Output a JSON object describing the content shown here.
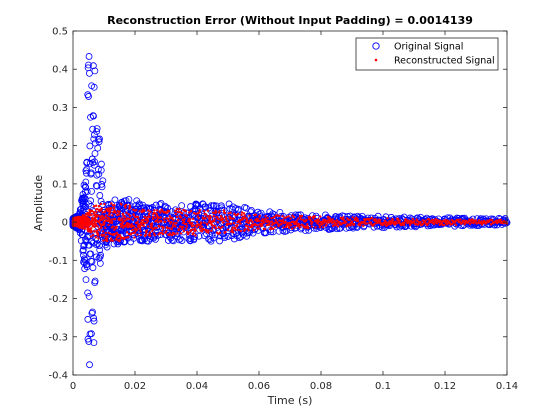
{
  "chart_data": {
    "type": "scatter",
    "title": "Reconstruction Error (Without Input Padding) = 0.0014139",
    "xlabel": "Time (s)",
    "ylabel": "Amplitude",
    "xlim": [
      0,
      0.14
    ],
    "ylim": [
      -0.4,
      0.5
    ],
    "x_ticks": [
      0,
      0.02,
      0.04,
      0.06,
      0.08,
      0.1,
      0.12,
      0.14
    ],
    "x_tick_labels": [
      "0",
      "0.02",
      "0.04",
      "0.06",
      "0.08",
      "0.1",
      "0.12",
      "0.14"
    ],
    "y_ticks": [
      -0.4,
      -0.3,
      -0.2,
      -0.1,
      0,
      0.1,
      0.2,
      0.3,
      0.4,
      0.5
    ],
    "y_tick_labels": [
      "-0.4",
      "-0.3",
      "-0.2",
      "-0.1",
      "0",
      "0.1",
      "0.2",
      "0.3",
      "0.4",
      "0.5"
    ],
    "grid": false,
    "legend_position": "top-right",
    "series": [
      {
        "name": "Original Signal",
        "marker": "circle-open",
        "color": "#0000ff",
        "envelope": {
          "t": [
            0,
            0.002,
            0.004,
            0.005,
            0.006,
            0.007,
            0.008,
            0.009,
            0.01,
            0.012,
            0.015,
            0.02,
            0.025,
            0.03,
            0.035,
            0.04,
            0.045,
            0.05,
            0.055,
            0.06,
            0.07,
            0.08,
            0.09,
            0.1,
            0.11,
            0.12,
            0.13,
            0.14
          ],
          "upper": [
            0.01,
            0.02,
            0.12,
            0.46,
            0.46,
            0.43,
            0.3,
            0.18,
            0.09,
            0.06,
            0.06,
            0.06,
            0.05,
            0.05,
            0.05,
            0.05,
            0.05,
            0.05,
            0.04,
            0.03,
            0.025,
            0.02,
            0.018,
            0.015,
            0.013,
            0.012,
            0.01,
            0.01
          ],
          "lower": [
            -0.01,
            -0.02,
            -0.15,
            -0.37,
            -0.38,
            -0.3,
            -0.2,
            -0.12,
            -0.08,
            -0.06,
            -0.06,
            -0.05,
            -0.05,
            -0.05,
            -0.05,
            -0.05,
            -0.05,
            -0.05,
            -0.04,
            -0.03,
            -0.025,
            -0.02,
            -0.018,
            -0.015,
            -0.013,
            -0.012,
            -0.01,
            -0.01
          ]
        }
      },
      {
        "name": "Reconstructed Signal",
        "marker": "dot",
        "color": "#ff0000",
        "envelope": {
          "t": [
            0,
            0.004,
            0.006,
            0.01,
            0.015,
            0.02,
            0.03,
            0.04,
            0.05,
            0.06,
            0.08,
            0.1,
            0.12,
            0.14
          ],
          "upper": [
            0.01,
            0.02,
            0.04,
            0.05,
            0.05,
            0.04,
            0.035,
            0.035,
            0.03,
            0.02,
            0.015,
            0.01,
            0.008,
            0.006
          ],
          "lower": [
            -0.01,
            -0.02,
            -0.04,
            -0.05,
            -0.05,
            -0.04,
            -0.035,
            -0.035,
            -0.03,
            -0.02,
            -0.015,
            -0.01,
            -0.008,
            -0.006
          ]
        }
      }
    ]
  }
}
